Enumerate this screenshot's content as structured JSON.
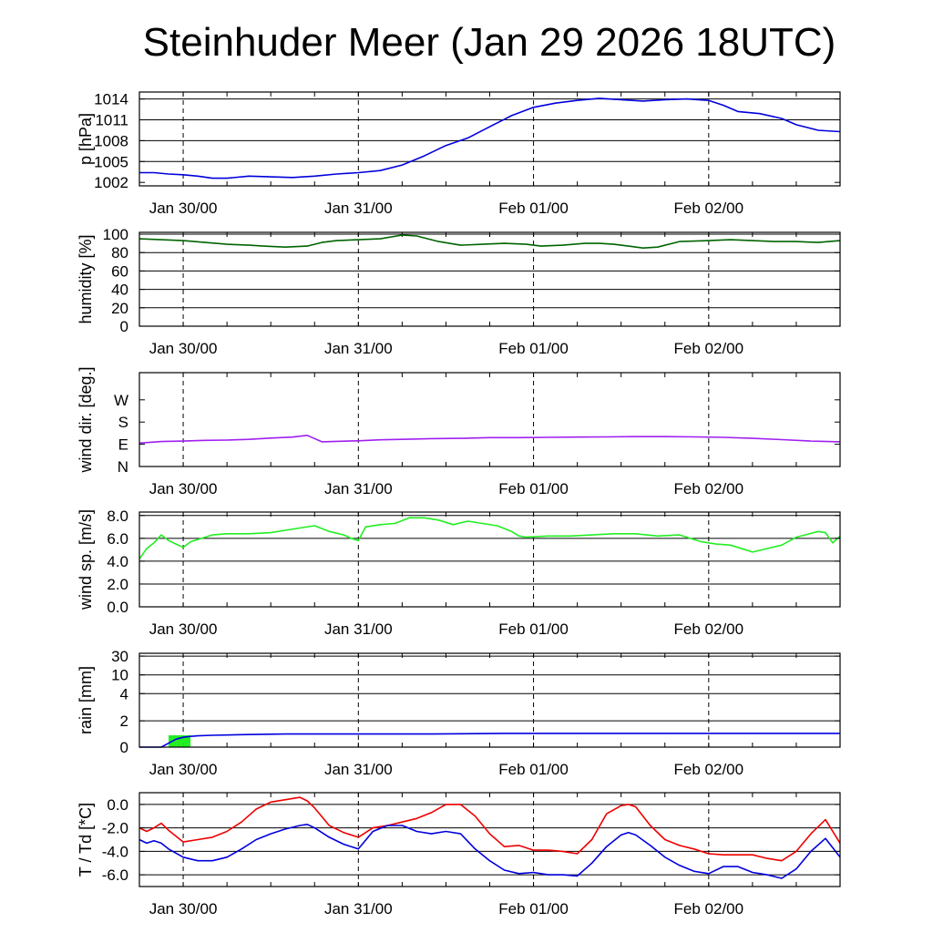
{
  "title": "Steinhuder Meer (Jan 29 2026 18UTC)",
  "chart_data": [
    {
      "type": "line",
      "id": "pressure",
      "ylabel": "p [hPa]",
      "ylim": [
        1001.5,
        1015
      ],
      "yticks": [
        1002,
        1005,
        1008,
        1011,
        1014
      ],
      "ytick_labels": [
        "1002",
        "1005",
        "1008",
        "1011",
        "1014"
      ],
      "grid_y": [
        1005,
        1008,
        1011,
        1014
      ],
      "xlim": [
        0,
        96
      ],
      "xtick_positions": [
        6,
        30,
        54,
        78
      ],
      "xtick_labels": [
        "Jan 30/00",
        "Jan 31/00",
        "Feb 01/00",
        "Feb 02/00"
      ],
      "series": [
        {
          "name": "p",
          "color": "#0000dd",
          "x": [
            0,
            2,
            4,
            6,
            8,
            10,
            12,
            15,
            18,
            21,
            24,
            27,
            30,
            33,
            36,
            39,
            42,
            45,
            48,
            51,
            54,
            57,
            60,
            63,
            66,
            69,
            72,
            75,
            78,
            80,
            82,
            85,
            88,
            90,
            93,
            96
          ],
          "y": [
            1003.4,
            1003.4,
            1003.2,
            1003.1,
            1002.9,
            1002.6,
            1002.6,
            1002.9,
            1002.8,
            1002.7,
            1002.9,
            1003.2,
            1003.4,
            1003.7,
            1004.5,
            1005.8,
            1007.3,
            1008.4,
            1010.0,
            1011.6,
            1012.8,
            1013.4,
            1013.8,
            1014.1,
            1013.9,
            1013.7,
            1013.9,
            1014.0,
            1013.8,
            1013.1,
            1012.2,
            1011.9,
            1011.2,
            1010.3,
            1009.5,
            1009.3
          ]
        }
      ]
    },
    {
      "type": "line",
      "id": "humidity",
      "ylabel": "humidity [%]",
      "ylim": [
        0,
        102
      ],
      "yticks": [
        0,
        20,
        40,
        60,
        80,
        100
      ],
      "ytick_labels": [
        "0",
        "20",
        "40",
        "60",
        "80",
        "100"
      ],
      "grid_y": [
        20,
        40,
        60,
        80,
        100
      ],
      "xlim": [
        0,
        96
      ],
      "xtick_positions": [
        6,
        30,
        54,
        78
      ],
      "xtick_labels": [
        "Jan 30/00",
        "Jan 31/00",
        "Feb 01/00",
        "Feb 02/00"
      ],
      "series": [
        {
          "name": "humidity",
          "color": "#006400",
          "x": [
            0,
            3,
            6,
            9,
            12,
            15,
            17,
            20,
            23,
            25,
            27,
            30,
            33,
            36,
            38,
            41,
            44,
            47,
            50,
            53,
            55,
            58,
            61,
            63,
            65,
            67,
            69,
            71,
            74,
            78,
            81,
            84,
            87,
            90,
            93,
            96
          ],
          "y": [
            95,
            94,
            93,
            91,
            89,
            88,
            87,
            86,
            87,
            91,
            93,
            94,
            95,
            99,
            98,
            92,
            88,
            89,
            90,
            89,
            87,
            88,
            90,
            90,
            89,
            87,
            85,
            86,
            92,
            93,
            94,
            93,
            92,
            92,
            91,
            93
          ]
        }
      ]
    },
    {
      "type": "line",
      "id": "wind_direction",
      "ylabel": "wind dir. [deg.]",
      "ylim": [
        0,
        380
      ],
      "yticks": [
        0,
        90,
        180,
        270
      ],
      "ytick_labels": [
        "N",
        "E",
        "S",
        "W"
      ],
      "grid_y": [],
      "xlim": [
        0,
        96
      ],
      "xtick_positions": [
        6,
        30,
        54,
        78
      ],
      "xtick_labels": [
        "Jan 30/00",
        "Jan 31/00",
        "Feb 01/00",
        "Feb 02/00"
      ],
      "series": [
        {
          "name": "wind direction",
          "color": "#a020f0",
          "x": [
            0,
            3,
            6,
            9,
            12,
            15,
            18,
            21,
            23,
            25,
            27,
            30,
            33,
            36,
            40,
            44,
            48,
            52,
            56,
            60,
            64,
            68,
            72,
            76,
            80,
            84,
            88,
            92,
            96
          ],
          "y": [
            95,
            101,
            103,
            106,
            107,
            110,
            115,
            119,
            126,
            100,
            102,
            104,
            108,
            110,
            113,
            114,
            117,
            117,
            118,
            119,
            120,
            121,
            121,
            120,
            118,
            114,
            109,
            103,
            100
          ]
        }
      ]
    },
    {
      "type": "line",
      "id": "wind_speed",
      "ylabel": "wind sp. [m/s]",
      "ylim": [
        0,
        8.3
      ],
      "yticks": [
        0,
        2,
        4,
        6,
        8
      ],
      "ytick_labels": [
        "0.0",
        "2.0",
        "4.0",
        "6.0",
        "8.0"
      ],
      "grid_y": [
        2,
        4,
        6,
        8
      ],
      "xlim": [
        0,
        96
      ],
      "xtick_positions": [
        6,
        30,
        54,
        78
      ],
      "xtick_labels": [
        "Jan 30/00",
        "Jan 31/00",
        "Feb 01/00",
        "Feb 02/00"
      ],
      "series": [
        {
          "name": "wind speed",
          "color": "#22ee22",
          "x": [
            0,
            1,
            2,
            3,
            4,
            5,
            6,
            7,
            8,
            10,
            12,
            15,
            18,
            20,
            22,
            24,
            26,
            28,
            29,
            30,
            31,
            33,
            35,
            37,
            39,
            41,
            43,
            45,
            47,
            49,
            51,
            52,
            53,
            56,
            59,
            62,
            65,
            68,
            71,
            74,
            77,
            79,
            81,
            83,
            84,
            86,
            88,
            90,
            93,
            94,
            95,
            96
          ],
          "y": [
            4.2,
            5.1,
            5.6,
            6.3,
            5.8,
            5.5,
            5.2,
            5.7,
            5.9,
            6.3,
            6.4,
            6.4,
            6.5,
            6.7,
            6.9,
            7.1,
            6.6,
            6.3,
            6.0,
            5.8,
            7.0,
            7.2,
            7.3,
            7.8,
            7.8,
            7.6,
            7.2,
            7.5,
            7.3,
            7.1,
            6.6,
            6.2,
            6.1,
            6.2,
            6.2,
            6.3,
            6.4,
            6.4,
            6.2,
            6.3,
            5.7,
            5.5,
            5.4,
            5.0,
            4.8,
            5.1,
            5.4,
            6.1,
            6.6,
            6.5,
            5.6,
            6.2
          ]
        }
      ]
    },
    {
      "type": "bar+line",
      "id": "rain",
      "ylabel": "rain [mm]",
      "ylim": [
        0,
        31
      ],
      "yscale": "nonlinear",
      "yticks": [
        0,
        2,
        4,
        10,
        30
      ],
      "ytick_labels": [
        "0",
        "2",
        "4",
        "10",
        "30"
      ],
      "grid_y": [
        2,
        4,
        10,
        30
      ],
      "xlim": [
        0,
        96
      ],
      "xtick_positions": [
        6,
        30,
        54,
        78
      ],
      "xtick_labels": [
        "Jan 30/00",
        "Jan 31/00",
        "Feb 01/00",
        "Feb 02/00"
      ],
      "bars": {
        "name": "hourly precipitation",
        "color": "#22ee22",
        "x": [
          4.5,
          5.5,
          6.5
        ],
        "y": [
          0.9,
          0.9,
          0.9
        ]
      },
      "series": [
        {
          "name": "accumulated precipitation",
          "color": "#0000dd",
          "x": [
            0,
            3,
            4,
            5,
            6,
            7,
            8,
            10,
            14,
            20,
            30,
            40,
            50,
            60,
            70,
            80,
            90,
            96
          ],
          "y": [
            0,
            0,
            0.3,
            0.6,
            0.75,
            0.82,
            0.86,
            0.9,
            0.95,
            1.0,
            1.0,
            1.0,
            1.05,
            1.05,
            1.05,
            1.05,
            1.05,
            1.05
          ]
        }
      ]
    },
    {
      "type": "line",
      "id": "temperature",
      "ylabel": "T / Td [*C]",
      "ylim": [
        -7.0,
        1.0
      ],
      "yticks": [
        -6,
        -4,
        -2,
        0
      ],
      "ytick_labels": [
        "-6.0",
        "-4.0",
        "-2.0",
        "0.0"
      ],
      "grid_y": [
        -6,
        -4,
        -2,
        0
      ],
      "xlim": [
        0,
        96
      ],
      "xtick_positions": [
        6,
        30,
        54,
        78
      ],
      "xtick_labels": [
        "Jan 30/00",
        "Jan 31/00",
        "Feb 01/00",
        "Feb 02/00"
      ],
      "series": [
        {
          "name": "T",
          "color": "#ee0000",
          "x": [
            0,
            1,
            2,
            3,
            4,
            6,
            8,
            10,
            12,
            14,
            16,
            18,
            20,
            22,
            23,
            24,
            26,
            28,
            30,
            32,
            34,
            36,
            38,
            40,
            42,
            44,
            46,
            48,
            50,
            52,
            54,
            56,
            58,
            60,
            62,
            64,
            66,
            67,
            68,
            70,
            72,
            74,
            76,
            78,
            80,
            82,
            84,
            86,
            88,
            90,
            92,
            94,
            96
          ],
          "y": [
            -2.0,
            -2.3,
            -2.0,
            -1.6,
            -2.2,
            -3.2,
            -3.0,
            -2.8,
            -2.3,
            -1.5,
            -0.4,
            0.2,
            0.4,
            0.6,
            0.3,
            -0.3,
            -1.8,
            -2.4,
            -2.8,
            -2.0,
            -1.8,
            -1.5,
            -1.2,
            -0.7,
            0.0,
            0.0,
            -1.0,
            -2.5,
            -3.6,
            -3.5,
            -3.9,
            -3.9,
            -4.0,
            -4.2,
            -3.0,
            -0.8,
            -0.1,
            0.0,
            -0.2,
            -1.8,
            -3.0,
            -3.5,
            -3.8,
            -4.2,
            -4.3,
            -4.3,
            -4.3,
            -4.6,
            -4.8,
            -4.0,
            -2.5,
            -1.3,
            -3.3
          ]
        },
        {
          "name": "Td",
          "color": "#0000dd",
          "x": [
            0,
            1,
            2,
            3,
            4,
            6,
            8,
            10,
            12,
            14,
            16,
            18,
            20,
            22,
            23,
            24,
            26,
            28,
            30,
            32,
            34,
            36,
            38,
            40,
            42,
            44,
            46,
            48,
            50,
            52,
            54,
            56,
            58,
            60,
            62,
            64,
            66,
            67,
            68,
            70,
            72,
            74,
            76,
            78,
            80,
            82,
            84,
            86,
            88,
            90,
            92,
            94,
            96
          ],
          "y": [
            -3.0,
            -3.3,
            -3.1,
            -3.3,
            -3.8,
            -4.5,
            -4.8,
            -4.8,
            -4.5,
            -3.8,
            -3.0,
            -2.5,
            -2.1,
            -1.8,
            -1.7,
            -2.0,
            -2.8,
            -3.4,
            -3.8,
            -2.3,
            -1.8,
            -1.8,
            -2.3,
            -2.5,
            -2.3,
            -2.5,
            -3.8,
            -4.8,
            -5.6,
            -5.9,
            -5.8,
            -6.0,
            -6.0,
            -6.1,
            -5.0,
            -3.6,
            -2.6,
            -2.4,
            -2.6,
            -3.5,
            -4.5,
            -5.2,
            -5.7,
            -5.9,
            -5.3,
            -5.3,
            -5.8,
            -6.0,
            -6.3,
            -5.5,
            -4.0,
            -2.9,
            -4.5
          ]
        }
      ]
    }
  ]
}
